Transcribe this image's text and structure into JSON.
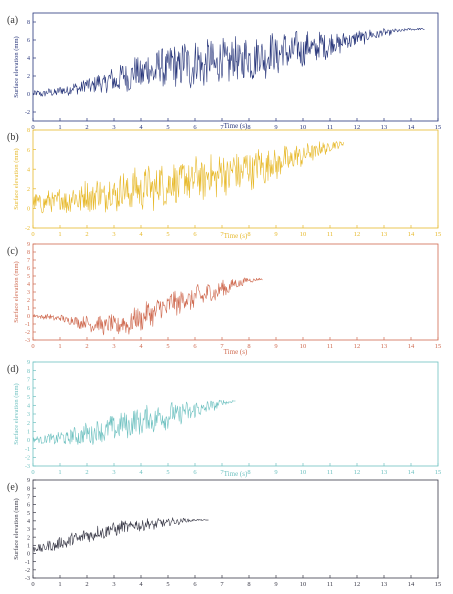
{
  "chart_data": [
    {
      "type": "line",
      "panel_label": "(a)",
      "xlabel": "Time (s)",
      "ylabel": "Surface elevation (mm)",
      "xlim": [
        0,
        15
      ],
      "ylim": [
        -3,
        9
      ],
      "xticks": [
        0,
        1,
        2,
        3,
        4,
        5,
        6,
        7,
        8,
        9,
        10,
        11,
        12,
        13,
        14,
        15
      ],
      "yticks": [
        -2,
        0,
        2,
        4,
        6,
        8
      ],
      "color": "#27357a",
      "grid": false,
      "series": [
        {
          "x": [
            0,
            0.5,
            1,
            1.5,
            2,
            2.5,
            3,
            3.5,
            4,
            4.5,
            5,
            5.5,
            6,
            6.5,
            7,
            7.5,
            8,
            8.5,
            9,
            9.5,
            10,
            10.5,
            11,
            11.5,
            12,
            12.5,
            13,
            13.5,
            14,
            14.5
          ],
          "y": [
            0,
            0.1,
            0.3,
            0.6,
            0.9,
            1.2,
            1.5,
            2.0,
            2.4,
            2.7,
            3.0,
            3.2,
            3.3,
            3.4,
            3.5,
            3.7,
            3.9,
            4.2,
            4.5,
            4.7,
            5.0,
            5.2,
            5.5,
            5.8,
            6.2,
            6.5,
            6.8,
            7.0,
            7.2,
            7.2
          ],
          "fluctuation_mm": [
            0.3,
            0.4,
            0.5,
            0.6,
            0.8,
            1.0,
            1.3,
            1.5,
            1.8,
            2.0,
            2.2,
            2.4,
            2.4,
            2.4,
            2.3,
            2.3,
            2.2,
            2.1,
            2.1,
            1.9,
            1.7,
            1.5,
            1.3,
            1.0,
            0.8,
            0.6,
            0.4,
            0.2,
            0.1,
            0.1
          ]
        }
      ]
    },
    {
      "type": "line",
      "panel_label": "(b)",
      "xlabel": "Time (s)",
      "ylabel": "Surface elevation (mm)",
      "xlim": [
        0,
        15
      ],
      "ylim": [
        -2,
        8
      ],
      "xticks": [
        0,
        1,
        2,
        3,
        4,
        5,
        6,
        7,
        8,
        9,
        10,
        11,
        12,
        13,
        14,
        15
      ],
      "yticks": [
        -2,
        0,
        2,
        4,
        6,
        8
      ],
      "color": "#e7b92b",
      "grid": false,
      "series": [
        {
          "x": [
            0,
            0.5,
            1,
            1.5,
            2,
            2.5,
            3,
            3.5,
            4,
            4.5,
            5,
            5.5,
            6,
            6.5,
            7,
            7.5,
            8,
            8.5,
            9,
            9.5,
            10,
            10.5,
            11,
            11.5
          ],
          "y": [
            0.5,
            0.6,
            0.8,
            1.0,
            1.2,
            1.4,
            1.6,
            1.8,
            2.0,
            2.2,
            2.5,
            2.7,
            3.0,
            3.2,
            3.5,
            3.7,
            4.0,
            4.3,
            4.6,
            5.0,
            5.4,
            5.9,
            6.3,
            6.7
          ],
          "fluctuation_mm": [
            0.8,
            1.0,
            1.2,
            1.4,
            1.5,
            1.6,
            1.7,
            1.8,
            1.9,
            2.0,
            2.0,
            2.0,
            2.0,
            2.0,
            2.0,
            2.0,
            1.8,
            1.7,
            1.5,
            1.3,
            1.0,
            0.8,
            0.5,
            0.3
          ]
        }
      ]
    },
    {
      "type": "line",
      "panel_label": "(c)",
      "xlabel": "Time (s)",
      "ylabel": "Surface elevation (mm)",
      "xlim": [
        0,
        15
      ],
      "ylim": [
        -3,
        9
      ],
      "xticks": [
        0,
        1,
        2,
        3,
        4,
        5,
        6,
        7,
        8,
        9,
        10,
        11,
        12,
        13,
        14,
        15
      ],
      "yticks": [
        -3,
        -2,
        -1,
        0,
        1,
        2,
        3,
        4,
        5,
        6,
        7,
        8,
        9
      ],
      "color": "#cf6a50",
      "grid": false,
      "series": [
        {
          "x": [
            0,
            0.5,
            1,
            1.5,
            2,
            2.5,
            3,
            3.5,
            4,
            4.5,
            5,
            5.5,
            6,
            6.5,
            7,
            7.5,
            8,
            8.5
          ],
          "y": [
            0,
            -0.1,
            -0.3,
            -0.6,
            -0.9,
            -1.1,
            -1.2,
            -1.0,
            -0.2,
            0.5,
            1.3,
            1.9,
            2.3,
            2.8,
            3.3,
            4.0,
            4.5,
            4.6
          ],
          "fluctuation_mm": [
            0.2,
            0.3,
            0.4,
            0.6,
            0.8,
            1.0,
            1.2,
            1.3,
            1.4,
            1.5,
            1.5,
            1.4,
            1.3,
            1.2,
            1.0,
            0.6,
            0.3,
            0.1
          ]
        }
      ]
    },
    {
      "type": "line",
      "panel_label": "(d)",
      "xlabel": "Time (s)",
      "ylabel": "Surface elevation (mm)",
      "xlim": [
        0,
        15
      ],
      "ylim": [
        -3,
        9
      ],
      "xticks": [
        0,
        1,
        2,
        3,
        4,
        5,
        6,
        7,
        8,
        9,
        10,
        11,
        12,
        13,
        14,
        15
      ],
      "yticks": [
        -3,
        -2,
        -1,
        0,
        1,
        2,
        3,
        4,
        5,
        6,
        7,
        8,
        9
      ],
      "color": "#6ec1c0",
      "grid": false,
      "series": [
        {
          "x": [
            0,
            0.5,
            1,
            1.5,
            2,
            2.5,
            3,
            3.5,
            4,
            4.5,
            5,
            5.5,
            6,
            6.5,
            7,
            7.5
          ],
          "y": [
            0,
            0.1,
            0.2,
            0.4,
            0.7,
            1.0,
            1.4,
            1.8,
            2.2,
            2.5,
            2.8,
            3.1,
            3.4,
            3.8,
            4.3,
            4.5
          ],
          "fluctuation_mm": [
            0.3,
            0.5,
            0.7,
            0.9,
            1.1,
            1.2,
            1.3,
            1.4,
            1.4,
            1.4,
            1.3,
            1.2,
            1.0,
            0.7,
            0.3,
            0.1
          ]
        }
      ]
    },
    {
      "type": "line",
      "panel_label": "(e)",
      "xlabel": "",
      "ylabel": "Surface elevation (mm)",
      "xlim": [
        0,
        15
      ],
      "ylim": [
        -3,
        9
      ],
      "xticks": [
        0,
        1,
        2,
        3,
        4,
        5,
        6,
        7,
        8,
        9,
        10,
        11,
        12,
        13,
        14,
        15
      ],
      "yticks": [
        -3,
        -2,
        -1,
        0,
        1,
        2,
        3,
        4,
        5,
        6,
        7,
        8,
        9
      ],
      "color": "#3a3a48",
      "grid": false,
      "series": [
        {
          "x": [
            0,
            0.5,
            1,
            1.5,
            2,
            2.5,
            3,
            3.5,
            4,
            4.5,
            5,
            5.5,
            6,
            6.5
          ],
          "y": [
            0.5,
            0.8,
            1.2,
            1.7,
            2.2,
            2.6,
            3.0,
            3.3,
            3.5,
            3.6,
            3.8,
            4.0,
            4.1,
            4.1
          ],
          "fluctuation_mm": [
            0.4,
            0.6,
            0.7,
            0.8,
            0.8,
            0.8,
            0.8,
            0.7,
            0.7,
            0.6,
            0.5,
            0.3,
            0.1,
            0.05
          ]
        }
      ]
    }
  ]
}
